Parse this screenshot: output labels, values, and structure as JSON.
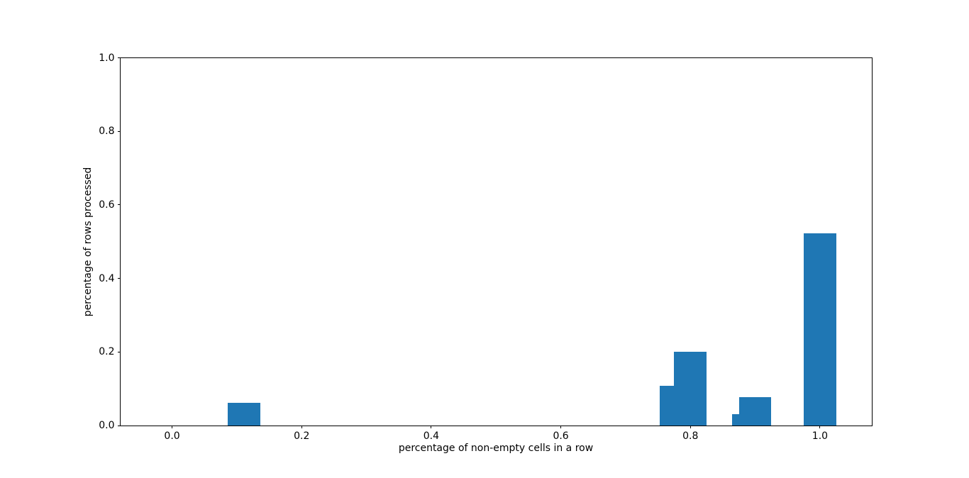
{
  "chart_data": {
    "type": "bar",
    "title": "",
    "xlabel": "percentage of non-empty cells in a row",
    "ylabel": "percentage of rows processed",
    "bar_color": "#1f77b4",
    "axis_color": "#000000",
    "text_color": "#000000",
    "background_color": "#ffffff",
    "bar_width": 0.05,
    "x": [
      0.111,
      0.778,
      0.8,
      0.889,
      0.9,
      1.0
    ],
    "values": [
      0.0615,
      0.1077,
      0.2,
      0.0308,
      0.0769,
      0.5231
    ],
    "xlim": [
      -0.08,
      1.08
    ],
    "ylim": [
      0,
      1
    ],
    "xticks": [
      0.0,
      0.2,
      0.4,
      0.6,
      0.8,
      1.0
    ],
    "xtick_labels": [
      "0.0",
      "0.2",
      "0.4",
      "0.6",
      "0.8",
      "1.0"
    ],
    "yticks": [
      0.0,
      0.2,
      0.4,
      0.6,
      0.8,
      1.0
    ],
    "ytick_labels": [
      "0.0",
      "0.2",
      "0.4",
      "0.6",
      "0.8",
      "1.0"
    ],
    "grid": false,
    "legend": null
  }
}
